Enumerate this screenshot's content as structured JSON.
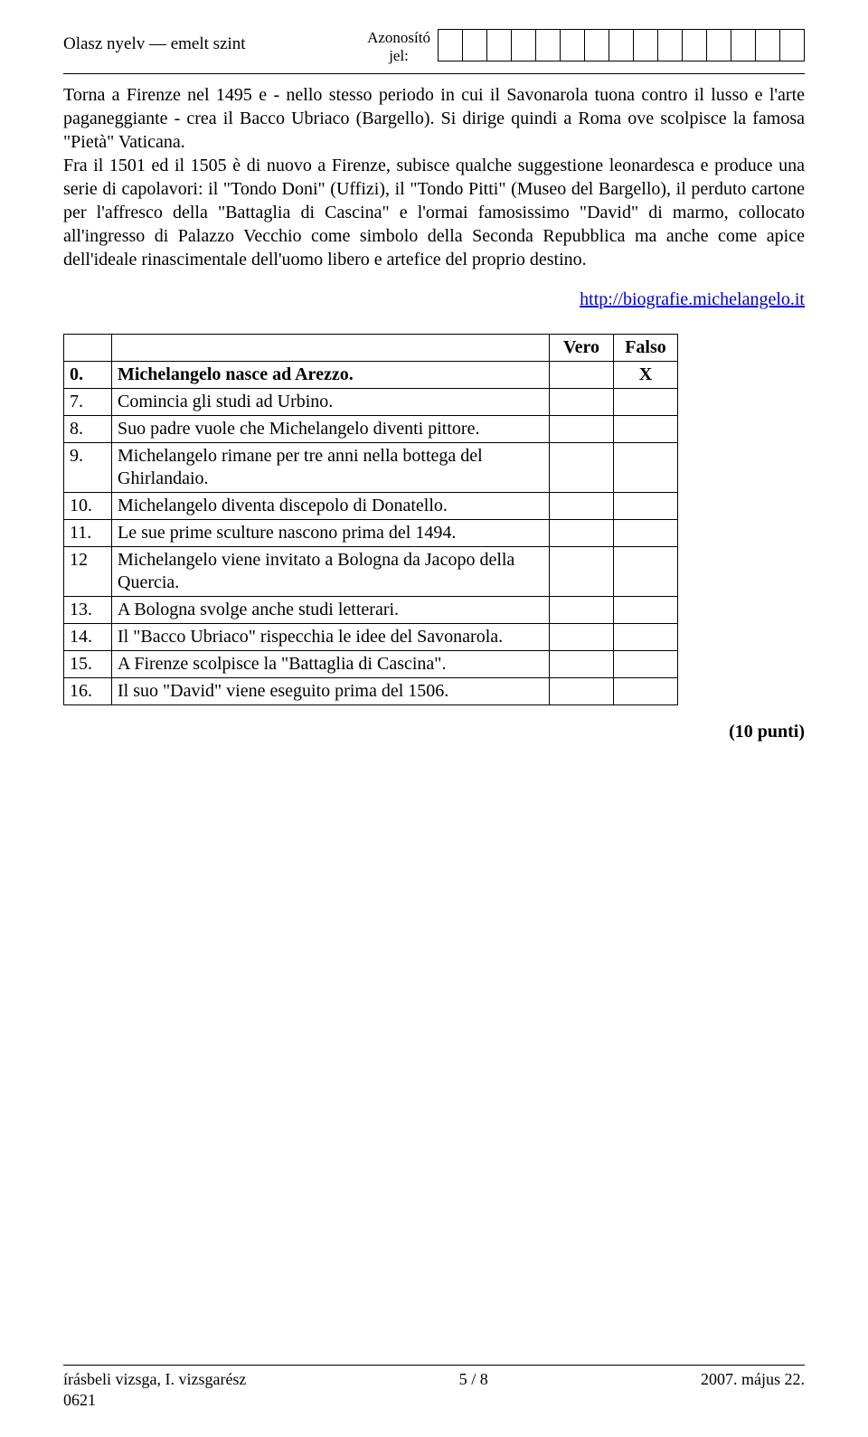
{
  "header": {
    "left": "Olasz nyelv — emelt szint",
    "center_line1": "Azonosító",
    "center_line2": "jel:",
    "id_box_count": 15
  },
  "paragraph": "Torna a Firenze nel 1495 e - nello stesso periodo in cui il Savonarola tuona contro il lusso e l'arte paganeggiante - crea il Bacco Ubriaco (Bargello). Si dirige quindi a Roma ove scolpisce la famosa \"Pietà\" Vaticana.\nFra il 1501 ed il 1505 è di nuovo a Firenze, subisce qualche suggestione leonardesca e produce una serie di capolavori: il \"Tondo Doni\" (Uffizi), il \"Tondo Pitti\" (Museo del Bargello), il perduto cartone per l'affresco della \"Battaglia di Cascina\" e l'ormai famosissimo \"David\" di marmo, collocato all'ingresso di Palazzo Vecchio come simbolo della Seconda Repubblica ma anche come apice dell'ideale rinascimentale dell'uomo libero e artefice del proprio destino.",
  "source_link": "http://biografie.michelangelo.it",
  "table": {
    "col_vero": "Vero",
    "col_falso": "Falso",
    "rows": [
      {
        "num": "0.",
        "text": "Michelangelo nasce ad Arezzo.",
        "bold": true,
        "vero": "",
        "falso": "X"
      },
      {
        "num": "7.",
        "text": "Comincia gli studi ad Urbino.",
        "bold": false,
        "vero": "",
        "falso": ""
      },
      {
        "num": "8.",
        "text": "Suo padre vuole che Michelangelo diventi pittore.",
        "bold": false,
        "vero": "",
        "falso": ""
      },
      {
        "num": "9.",
        "text": "Michelangelo rimane per tre anni nella bottega del Ghirlandaio.",
        "bold": false,
        "vero": "",
        "falso": ""
      },
      {
        "num": "10.",
        "text": "Michelangelo diventa discepolo di Donatello.",
        "bold": false,
        "vero": "",
        "falso": ""
      },
      {
        "num": "11.",
        "text": "Le sue prime sculture nascono prima del 1494.",
        "bold": false,
        "vero": "",
        "falso": ""
      },
      {
        "num": "12",
        "text": "Michelangelo viene invitato a Bologna da Jacopo della Quercia.",
        "bold": false,
        "vero": "",
        "falso": ""
      },
      {
        "num": "13.",
        "text": "A Bologna svolge anche studi letterari.",
        "bold": false,
        "vero": "",
        "falso": ""
      },
      {
        "num": "14.",
        "text": "Il \"Bacco Ubriaco\" rispecchia le idee del Savonarola.",
        "bold": false,
        "vero": "",
        "falso": ""
      },
      {
        "num": "15.",
        "text": "A Firenze scolpisce la \"Battaglia di Cascina\".",
        "bold": false,
        "vero": "",
        "falso": ""
      },
      {
        "num": "16.",
        "text": "Il suo \"David\" viene eseguito prima del 1506.",
        "bold": false,
        "vero": "",
        "falso": ""
      }
    ]
  },
  "points": "(10 punti)",
  "footer": {
    "left_line1": "írásbeli vizsga, I. vizsgarész",
    "left_line2": "0621",
    "center": "5 / 8",
    "right": "2007. május 22."
  }
}
